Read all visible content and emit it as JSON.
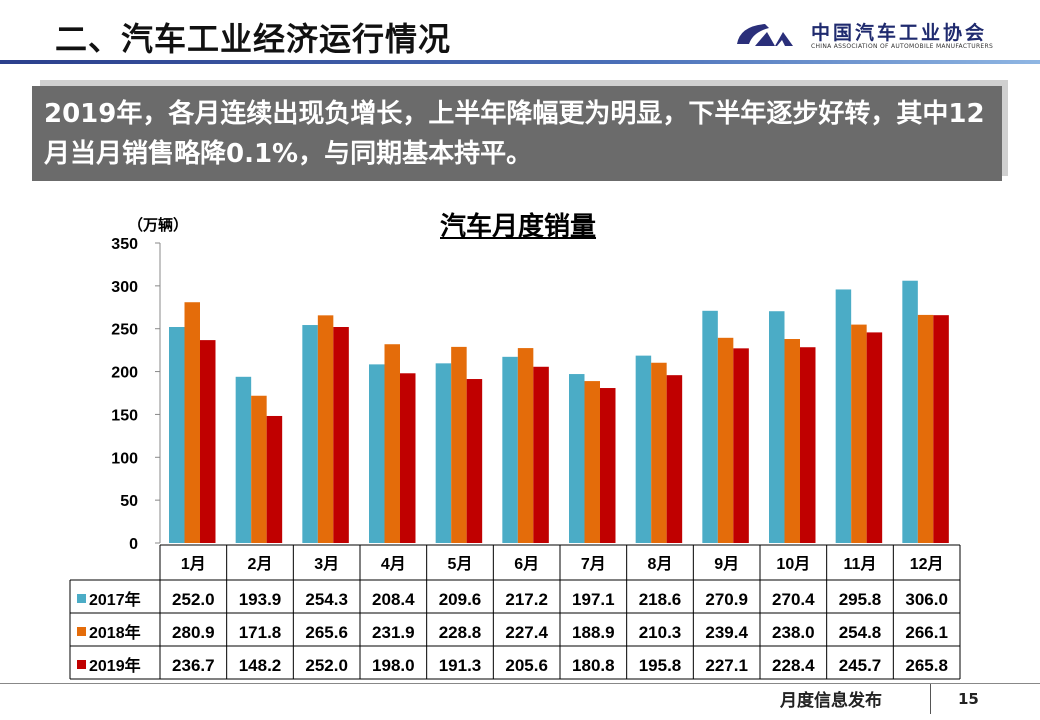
{
  "header": {
    "title": "二、汽车工业经济运行情况",
    "logo_cn": "中国汽车工业协会",
    "logo_en": "CHINA ASSOCIATION OF AUTOMOBILE MANUFACTURERS"
  },
  "banner": {
    "text": "2019年，各月连续出现负增长，上半年降幅更为明显，下半年逐步好转，其中12月当月销售略降0.1%，与同期基本持平。"
  },
  "chart_data": {
    "type": "bar",
    "title": "汽车月度销量",
    "ylabel": "（万辆）",
    "ylim": [
      0,
      350
    ],
    "yticks": [
      "0",
      "50",
      "100",
      "150",
      "200",
      "250",
      "300",
      "350"
    ],
    "categories": [
      "1月",
      "2月",
      "3月",
      "4月",
      "5月",
      "6月",
      "7月",
      "8月",
      "9月",
      "10月",
      "11月",
      "12月"
    ],
    "series": [
      {
        "name": "2017年",
        "color": "#4bacc6",
        "values": [
          252.0,
          193.9,
          254.3,
          208.4,
          209.6,
          217.2,
          197.1,
          218.6,
          270.9,
          270.4,
          295.8,
          306.0
        ],
        "labels": [
          "252.0",
          "193.9",
          "254.3",
          "208.4",
          "209.6",
          "217.2",
          "197.1",
          "218.6",
          "270.9",
          "270.4",
          "295.8",
          "306.0"
        ]
      },
      {
        "name": "2018年",
        "color": "#e46c0a",
        "values": [
          280.9,
          171.8,
          265.6,
          231.9,
          228.8,
          227.4,
          188.9,
          210.3,
          239.4,
          238.0,
          254.8,
          266.1
        ],
        "labels": [
          "280.9",
          "171.8",
          "265.6",
          "231.9",
          "228.8",
          "227.4",
          "188.9",
          "210.3",
          "239.4",
          "238.0",
          "254.8",
          "266.1"
        ]
      },
      {
        "name": "2019年",
        "color": "#c00000",
        "values": [
          236.7,
          148.2,
          252.0,
          198.0,
          191.3,
          205.6,
          180.8,
          195.8,
          227.1,
          228.4,
          245.7,
          265.8
        ],
        "labels": [
          "236.7",
          "148.2",
          "252.0",
          "198.0",
          "191.3",
          "205.6",
          "180.8",
          "195.8",
          "227.1",
          "228.4",
          "245.7",
          "265.8"
        ]
      }
    ],
    "legend": "table-left"
  },
  "footer": {
    "text": "月度信息发布",
    "page": "15"
  }
}
